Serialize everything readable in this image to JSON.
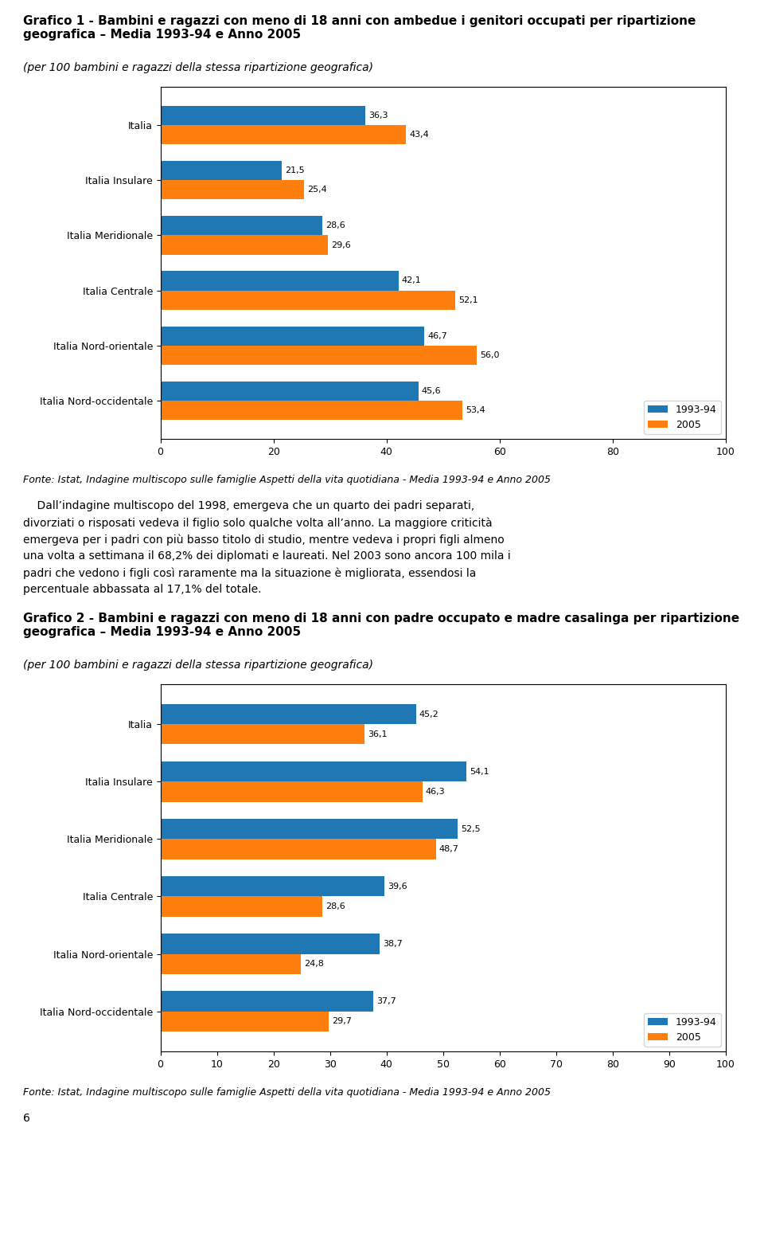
{
  "chart_data": [
    {
      "type": "bar",
      "orientation": "horizontal",
      "title": "Grafico 1 - Bambini e ragazzi con meno di 18 anni con ambedue i genitori occupati per ripartizione geografica – Media 1993-94 e Anno 2005",
      "subtitle": "(per 100 bambini e ragazzi della stessa ripartizione geografica)",
      "categories": [
        "Italia Nord-occidentale",
        "Italia Nord-orientale",
        "Italia Centrale",
        "Italia Meridionale",
        "Italia Insulare",
        "Italia"
      ],
      "series": [
        {
          "name": "1993-94",
          "values": [
            45.6,
            46.7,
            42.1,
            28.6,
            21.5,
            36.3
          ],
          "value_labels": [
            "45,6",
            "46,7",
            "42,1",
            "28,6",
            "21,5",
            "36,3"
          ]
        },
        {
          "name": "2005",
          "values": [
            53.4,
            56.0,
            52.1,
            29.6,
            25.4,
            43.4
          ],
          "value_labels": [
            "53,4",
            "56,0",
            "52,1",
            "29,6",
            "25,4",
            "43,4"
          ]
        }
      ],
      "xlim": [
        0,
        100
      ],
      "xticks": [
        0,
        20,
        40,
        60,
        80,
        100
      ],
      "data_labels": true,
      "legend": "lower right",
      "grid": false,
      "annotations": [
        "Fonte: Istat, Indagine multiscopo sulle famiglie Aspetti della vita quotidiana - Media 1993-94 e Anno 2005",
        "    Dall’indagine multiscopo del 1998, emergeva che un quarto dei padri separati,",
        "divorziati o risposati vedeva il figlio solo qualche volta all’anno. La maggiore criticità",
        "emergeva per i padri con più basso titolo di studio, mentre vedeva i propri figli almeno",
        "una volta a settimana il 68,2% dei diplomati e laureati. Nel 2003 sono ancora 100 mila i",
        "padri che vedono i figli così raramente ma la situazione è migliorata, essendosi la",
        "percentuale abbassata al 17,1% del totale."
      ]
    },
    {
      "type": "bar",
      "orientation": "horizontal",
      "title": "Grafico 2 - Bambini e ragazzi con meno di 18 anni con padre occupato e madre casalinga per ripartizione geografica – Media 1993-94 e Anno 2005",
      "subtitle": "(per 100 bambini e ragazzi della stessa ripartizione geografica)",
      "categories": [
        "Italia Nord-occidentale",
        "Italia Nord-orientale",
        "Italia Centrale",
        "Italia Meridionale",
        "Italia Insulare",
        "Italia"
      ],
      "series": [
        {
          "name": "1993-94",
          "values": [
            37.7,
            38.7,
            39.6,
            52.5,
            54.1,
            45.2
          ],
          "value_labels": [
            "37,7",
            "38,7",
            "39,6",
            "52,5",
            "54,1",
            "45,2"
          ]
        },
        {
          "name": "2005",
          "values": [
            29.7,
            24.8,
            28.6,
            48.7,
            46.3,
            36.1
          ],
          "value_labels": [
            "29,7",
            "24,8",
            "28,6",
            "48,7",
            "46,3",
            "36,1"
          ]
        }
      ],
      "xlim": [
        0,
        100
      ],
      "xticks": [
        0,
        10,
        20,
        30,
        40,
        50,
        60,
        70,
        80,
        90,
        100
      ],
      "data_labels": true,
      "legend": "lower right",
      "grid": false,
      "annotations": [
        "Fonte: Istat, Indagine multiscopo sulle famiglie Aspetti della vita quotidiana - Media 1993-94 e Anno 2005",
        "6"
      ]
    }
  ]
}
